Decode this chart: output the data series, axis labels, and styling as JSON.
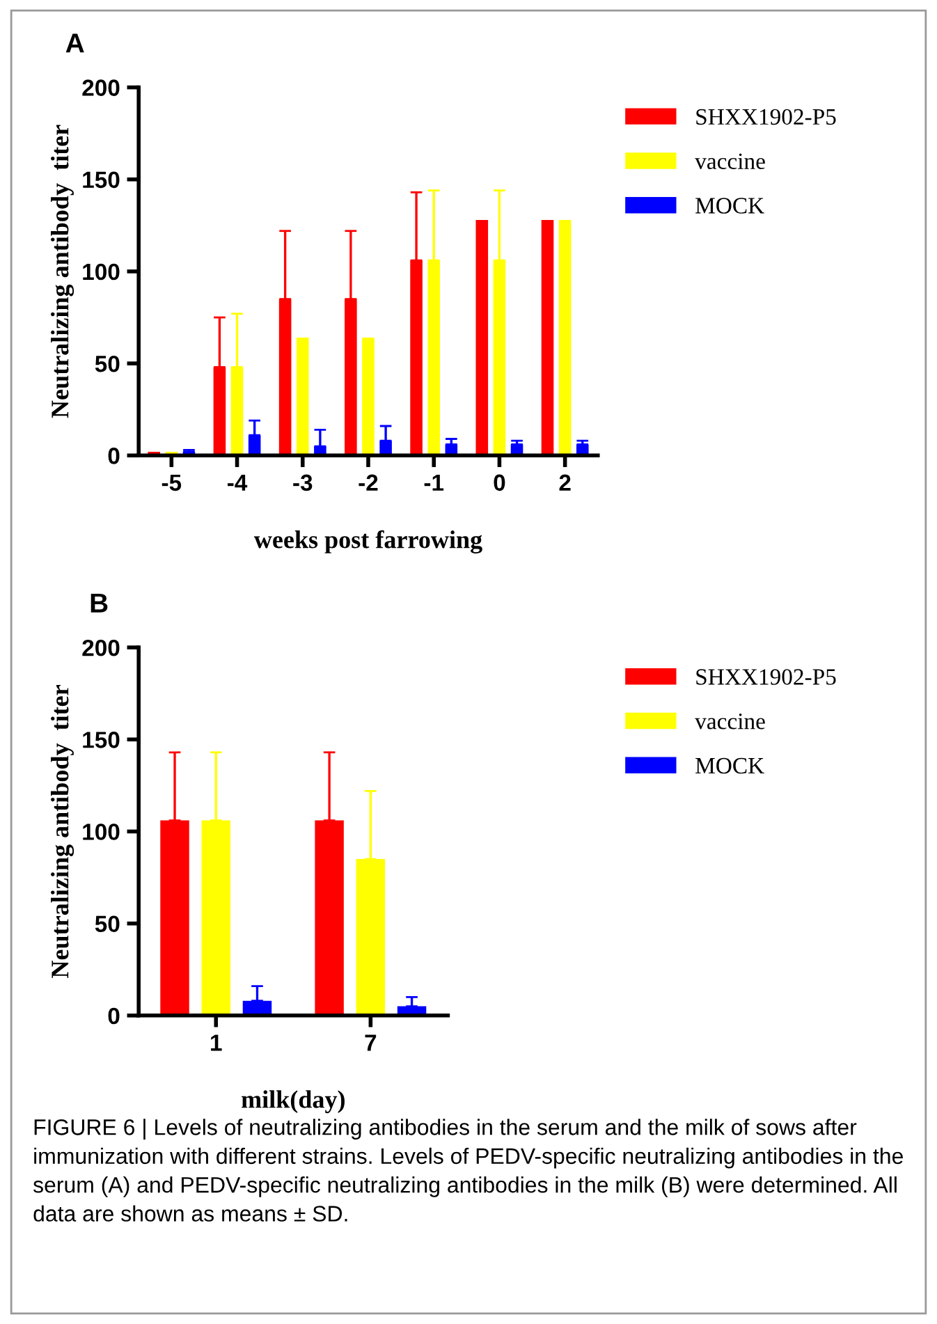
{
  "chart_data": [
    {
      "type": "bar",
      "title": "A",
      "xlabel": "weeks post farrowing",
      "ylabel": "Neutralizing antibody  titer",
      "categories": [
        "-5",
        "-4",
        "-3",
        "-2",
        "-1",
        "0",
        "2"
      ],
      "series": [
        {
          "name": "SHXX1902-P5",
          "color": "#ff0000",
          "values": [
            2,
            48,
            85,
            85,
            106,
            128,
            128
          ],
          "errors": [
            null,
            [
              48,
              75
            ],
            [
              85,
              122
            ],
            [
              85,
              122
            ],
            [
              106,
              143
            ],
            null,
            null
          ]
        },
        {
          "name": "vaccine",
          "color": "#ffff00",
          "values": [
            2,
            48,
            64,
            64,
            106,
            106,
            128
          ],
          "errors": [
            null,
            [
              48,
              77
            ],
            null,
            null,
            [
              106,
              144
            ],
            [
              106,
              144
            ],
            null
          ]
        },
        {
          "name": "MOCK",
          "color": "#0000ff",
          "values": [
            2,
            11,
            5,
            8,
            6,
            6,
            6
          ],
          "errors": [
            [
              2,
              3
            ],
            [
              11,
              19
            ],
            [
              5,
              14
            ],
            [
              8,
              16
            ],
            [
              6,
              9
            ],
            [
              6,
              8
            ],
            [
              6,
              8
            ]
          ]
        }
      ],
      "ylim": [
        0,
        200
      ],
      "yticks": [
        0,
        50,
        100,
        150,
        200
      ],
      "grid": false,
      "legend": "right"
    },
    {
      "type": "bar",
      "title": "B",
      "xlabel": "milk(day)",
      "ylabel": "Neutralizing antibody  titer",
      "categories": [
        "1",
        "7"
      ],
      "series": [
        {
          "name": "SHXX1902-P5",
          "color": "#ff0000",
          "values": [
            106,
            106
          ],
          "errors": [
            [
              106,
              143
            ],
            [
              106,
              143
            ]
          ]
        },
        {
          "name": "vaccine",
          "color": "#ffff00",
          "values": [
            106,
            85
          ],
          "errors": [
            [
              106,
              143
            ],
            [
              85,
              122
            ]
          ]
        },
        {
          "name": "MOCK",
          "color": "#0000ff",
          "values": [
            8,
            5
          ],
          "errors": [
            [
              8,
              16
            ],
            [
              5,
              10
            ]
          ]
        }
      ],
      "ylim": [
        0,
        200
      ],
      "yticks": [
        0,
        50,
        100,
        150,
        200
      ],
      "grid": false,
      "legend": "right",
      "annotations": [
        "FIGURE 6 | Levels of neutralizing antibodies in the serum and the milk of sows after immunization with different strains. Levels of PEDV-specific neutralizing antibodies in the serum (A) and PEDV-specific neutralizing antibodies in the milk (B) were determined. All data are shown as means ± SD."
      ]
    }
  ]
}
